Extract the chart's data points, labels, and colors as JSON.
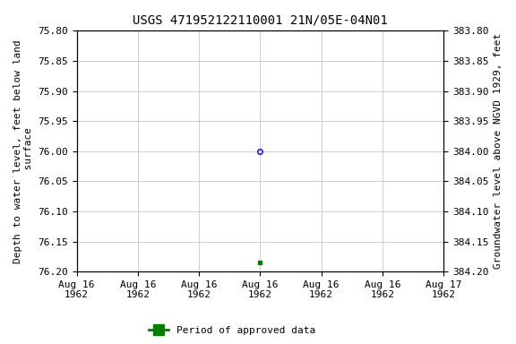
{
  "title": "USGS 471952122110001 21N/05E-04N01",
  "ylabel_left": "Depth to water level, feet below land\n surface",
  "ylabel_right": "Groundwater level above NGVD 1929, feet",
  "ylim_left": [
    75.8,
    76.2
  ],
  "ylim_right": [
    384.2,
    383.8
  ],
  "yticks_left": [
    75.8,
    75.85,
    75.9,
    75.95,
    76.0,
    76.05,
    76.1,
    76.15,
    76.2
  ],
  "yticks_right": [
    384.2,
    384.15,
    384.1,
    384.05,
    384.0,
    383.95,
    383.9,
    383.85,
    383.8
  ],
  "xlim": [
    0,
    6
  ],
  "xtick_positions": [
    0,
    1,
    2,
    3,
    4,
    5,
    6
  ],
  "xtick_labels": [
    "Aug 16\n1962",
    "Aug 16\n1962",
    "Aug 16\n1962",
    "Aug 16\n1962",
    "Aug 16\n1962",
    "Aug 16\n1962",
    "Aug 17\n1962"
  ],
  "data_point_x": 3.0,
  "data_point_y": 76.0,
  "data_point_color": "#0000cc",
  "green_marker_x": 3.0,
  "green_marker_y": 76.185,
  "green_marker_color": "#008000",
  "legend_label": "Period of approved data",
  "legend_color": "#008000",
  "background_color": "#ffffff",
  "grid_color": "#bbbbbb",
  "title_fontsize": 10,
  "label_fontsize": 8,
  "tick_fontsize": 8
}
